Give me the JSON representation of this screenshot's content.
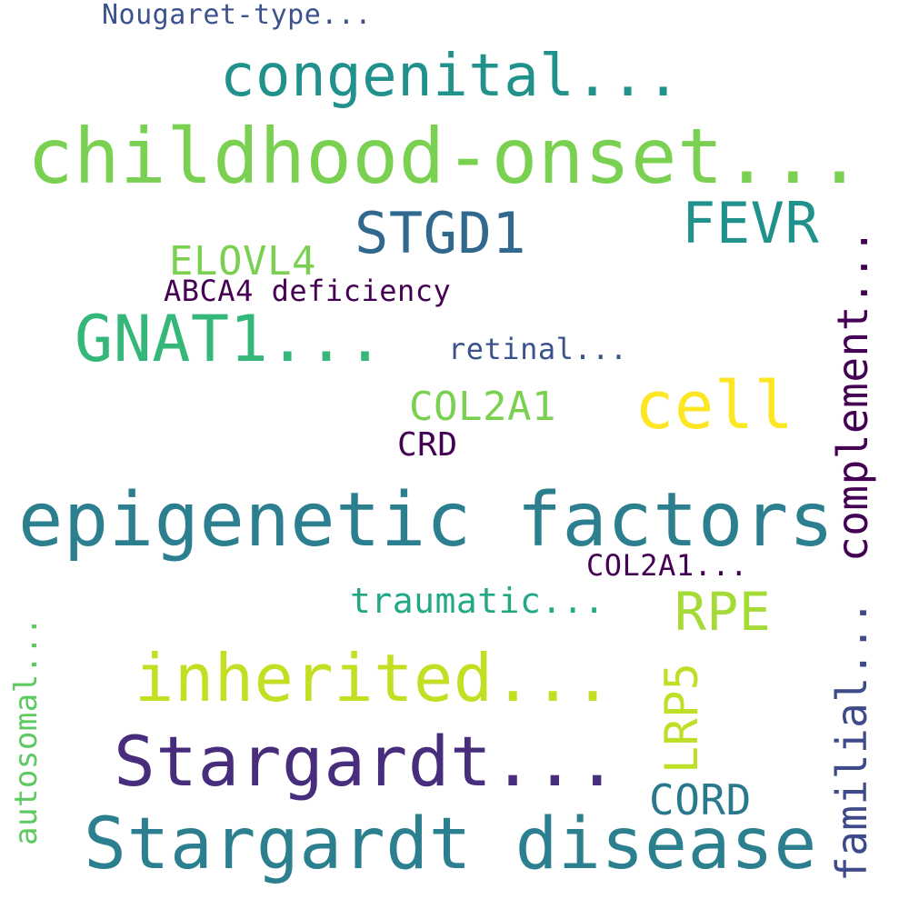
{
  "words": [
    {
      "text": "Nougaret-type...",
      "color": "#3b528b"
    },
    {
      "text": "congenital...",
      "color": "#21918c"
    },
    {
      "text": "childhood-onset...",
      "color": "#7ad151"
    },
    {
      "text": "STGD1",
      "color": "#31688e"
    },
    {
      "text": "FEVR",
      "color": "#21918c"
    },
    {
      "text": "ELOVL4",
      "color": "#7ad151"
    },
    {
      "text": "ABCA4 deficiency",
      "color": "#440154"
    },
    {
      "text": "GNAT1...",
      "color": "#35b779"
    },
    {
      "text": "retinal...",
      "color": "#3b528b"
    },
    {
      "text": "COL2A1",
      "color": "#7ad151"
    },
    {
      "text": "cell",
      "color": "#fde725"
    },
    {
      "text": "CRD",
      "color": "#440154"
    },
    {
      "text": "epigenetic factors",
      "color": "#2c7f8e"
    },
    {
      "text": "COL2A1...",
      "color": "#440154"
    },
    {
      "text": "traumatic...",
      "color": "#22a884"
    },
    {
      "text": "RPE",
      "color": "#a5db36"
    },
    {
      "text": "inherited...",
      "color": "#c4df23"
    },
    {
      "text": "Stargardt...",
      "color": "#472d7b"
    },
    {
      "text": "CORD",
      "color": "#2a788e"
    },
    {
      "text": "Stargardt disease",
      "color": "#2c7f8e"
    }
  ],
  "vertical_words": [
    {
      "text": "complement...",
      "color": "#440154"
    },
    {
      "text": "LRP5",
      "color": "#bddf26"
    },
    {
      "text": "autosomal...",
      "color": "#5ec962"
    },
    {
      "text": "familial...",
      "color": "#3e4a89"
    }
  ]
}
